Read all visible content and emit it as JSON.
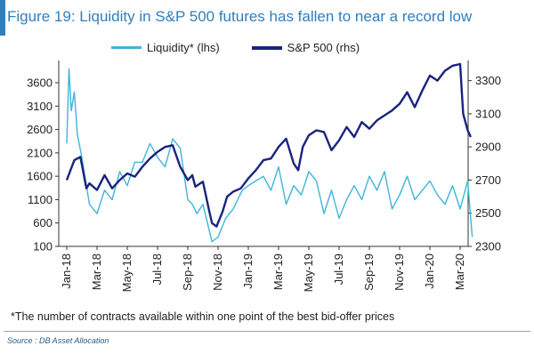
{
  "title": "Figure 19: Liquidity in S&P 500 futures has fallen to near a record low",
  "footnote": "*The number of contracts available within one point of the best bid-offer prices",
  "source": "Source : DB Asset Allocation",
  "colors": {
    "liquidity": "#3fb4dc",
    "sp500": "#1a237e",
    "title": "#2f7fbf"
  },
  "chart_data": {
    "type": "line",
    "legend_position": "top",
    "grid": false,
    "x_ticks": [
      "Jan-18",
      "Mar-18",
      "May-18",
      "Jul-18",
      "Sep-18",
      "Nov-18",
      "Jan-19",
      "Mar-19",
      "May-19",
      "Jul-19",
      "Sep-19",
      "Nov-19",
      "Jan-20",
      "Mar-20"
    ],
    "left_axis": {
      "label": "lhs",
      "ticks": [
        100,
        600,
        1100,
        1600,
        2100,
        2600,
        3100,
        3600
      ],
      "ylim": [
        100,
        4000
      ]
    },
    "right_axis": {
      "label": "rhs",
      "ticks": [
        2300,
        2500,
        2700,
        2900,
        3100,
        3300
      ],
      "ylim": [
        2300,
        3400
      ]
    },
    "series": [
      {
        "name": "Liquidity* (lhs)",
        "axis": "left",
        "x": [
          0,
          0.15,
          0.3,
          0.5,
          0.7,
          1,
          1.5,
          2,
          2.5,
          3,
          3.5,
          4,
          4.5,
          5,
          5.5,
          6,
          6.5,
          7,
          7.5,
          8,
          8.3,
          8.6,
          9,
          9.3,
          9.6,
          10,
          10.5,
          11,
          11.3,
          11.6,
          12,
          12.5,
          13,
          13.5,
          14,
          14.5,
          15,
          15.5,
          16,
          16.5,
          17,
          17.5,
          18,
          18.5,
          19,
          19.5,
          20,
          20.5,
          21,
          21.5,
          22,
          22.5,
          23,
          23.5,
          24,
          24.5,
          25,
          25.5,
          26,
          26.5,
          26.8
        ],
        "y": [
          2300,
          3900,
          3000,
          3400,
          2500,
          2000,
          1000,
          800,
          1300,
          1100,
          1700,
          1400,
          1900,
          1900,
          2300,
          2000,
          1800,
          2400,
          2200,
          1100,
          1000,
          800,
          1000,
          600,
          200,
          300,
          700,
          900,
          1100,
          1300,
          1400,
          1500,
          1600,
          1300,
          1800,
          1000,
          1400,
          1200,
          1700,
          1500,
          800,
          1300,
          700,
          1100,
          1400,
          1100,
          1600,
          1300,
          1700,
          900,
          1200,
          1600,
          1100,
          1300,
          1500,
          1200,
          1000,
          1400,
          900,
          1500,
          300
        ]
      },
      {
        "name": "S&P 500 (rhs)",
        "axis": "right",
        "x": [
          0,
          0.5,
          0.9,
          1.3,
          1.5,
          2,
          2.5,
          3,
          3.5,
          4,
          4.5,
          5,
          5.5,
          6,
          6.5,
          7,
          7.5,
          8,
          8.3,
          8.5,
          9,
          9.4,
          9.6,
          9.9,
          10.3,
          10.6,
          11,
          11.5,
          12,
          12.5,
          13,
          13.5,
          14,
          14.5,
          15,
          15.3,
          15.6,
          16,
          16.5,
          17,
          17.5,
          18,
          18.5,
          19,
          19.5,
          20,
          20.5,
          21,
          21.5,
          22,
          22.5,
          23,
          23.5,
          24,
          24.5,
          25,
          25.5,
          26,
          26.2,
          26.5,
          26.7
        ],
        "y": [
          2700,
          2820,
          2840,
          2650,
          2680,
          2640,
          2730,
          2650,
          2700,
          2740,
          2720,
          2780,
          2830,
          2870,
          2900,
          2910,
          2780,
          2700,
          2730,
          2660,
          2690,
          2520,
          2440,
          2420,
          2510,
          2600,
          2630,
          2650,
          2710,
          2760,
          2820,
          2830,
          2900,
          2950,
          2800,
          2760,
          2900,
          2970,
          3000,
          2990,
          2880,
          2940,
          3020,
          2960,
          3050,
          3010,
          3060,
          3090,
          3120,
          3160,
          3230,
          3140,
          3240,
          3330,
          3300,
          3360,
          3390,
          3400,
          3100,
          3000,
          2960
        ]
      }
    ]
  }
}
